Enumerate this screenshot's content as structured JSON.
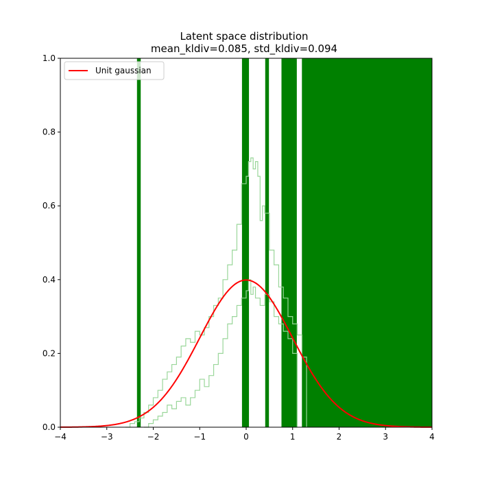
{
  "chart_data": {
    "type": "line",
    "title": "Latent space distribution",
    "subtitle": "mean_kldiv=0.085, std_kldiv=0.094",
    "xlabel": "",
    "ylabel": "",
    "xlim": [
      -4,
      4
    ],
    "ylim": [
      0,
      1.0
    ],
    "xticks": [
      "−4",
      "−3",
      "−2",
      "−1",
      "0",
      "1",
      "2",
      "3",
      "4"
    ],
    "xtick_values": [
      -4,
      -3,
      -2,
      -1,
      0,
      1,
      2,
      3,
      4
    ],
    "yticks": [
      "0.0",
      "0.2",
      "0.4",
      "0.6",
      "0.8",
      "1.0"
    ],
    "ytick_values": [
      0,
      0.2,
      0.4,
      0.6,
      0.8,
      1.0
    ],
    "grid": false,
    "legend": {
      "placement": "upper-left",
      "entries": [
        {
          "label": "Unit gaussian",
          "color": "#ff0000"
        }
      ]
    },
    "series": [
      {
        "name": "Unit gaussian",
        "kind": "normal-pdf",
        "mean": 0,
        "std": 1,
        "color": "#ff0000"
      }
    ],
    "histograms": [
      {
        "color": "#008000",
        "style": "filled-bars",
        "bars": [
          {
            "x_start": -2.35,
            "x_end": -2.27,
            "height": 1.0
          },
          {
            "x_start": -0.09,
            "x_end": 0.06,
            "height": 1.0
          },
          {
            "x_start": 0.41,
            "x_end": 0.49,
            "height": 1.0
          },
          {
            "x_start": 0.76,
            "x_end": 1.09,
            "height": 1.0
          },
          {
            "x_start": 1.2,
            "x_end": 4.0,
            "height": 1.0
          }
        ]
      },
      {
        "color": "#99d699",
        "style": "step-outline",
        "points": [
          [
            -2.6,
            0.0
          ],
          [
            -2.5,
            0.01
          ],
          [
            -2.4,
            0.015
          ],
          [
            -2.3,
            0.025
          ],
          [
            -2.2,
            0.04
          ],
          [
            -2.1,
            0.06
          ],
          [
            -2.0,
            0.08
          ],
          [
            -1.9,
            0.1
          ],
          [
            -1.8,
            0.13
          ],
          [
            -1.7,
            0.15
          ],
          [
            -1.6,
            0.17
          ],
          [
            -1.5,
            0.19
          ],
          [
            -1.4,
            0.22
          ],
          [
            -1.3,
            0.24
          ],
          [
            -1.2,
            0.23
          ],
          [
            -1.1,
            0.26
          ],
          [
            -1.0,
            0.25
          ],
          [
            -0.9,
            0.27
          ],
          [
            -0.8,
            0.3
          ],
          [
            -0.7,
            0.33
          ],
          [
            -0.6,
            0.35
          ],
          [
            -0.5,
            0.4
          ],
          [
            -0.4,
            0.44
          ],
          [
            -0.3,
            0.48
          ],
          [
            -0.2,
            0.55
          ],
          [
            -0.1,
            0.66
          ],
          [
            0.0,
            0.68
          ],
          [
            0.05,
            0.72
          ],
          [
            0.1,
            0.73
          ],
          [
            0.15,
            0.7
          ],
          [
            0.2,
            0.72
          ],
          [
            0.25,
            0.68
          ],
          [
            0.3,
            0.56
          ],
          [
            0.35,
            0.6
          ],
          [
            0.4,
            0.58
          ],
          [
            0.5,
            0.48
          ],
          [
            0.6,
            0.44
          ],
          [
            0.7,
            0.38
          ],
          [
            0.8,
            0.35
          ],
          [
            0.9,
            0.3
          ],
          [
            1.0,
            0.28
          ],
          [
            1.1,
            0.25
          ],
          [
            1.2,
            0.19
          ],
          [
            1.3,
            0.0
          ]
        ]
      },
      {
        "color": "#99d699",
        "style": "step-outline",
        "points": [
          [
            -2.2,
            0.0
          ],
          [
            -2.1,
            0.01
          ],
          [
            -2.0,
            0.02
          ],
          [
            -1.9,
            0.03
          ],
          [
            -1.8,
            0.04
          ],
          [
            -1.7,
            0.06
          ],
          [
            -1.6,
            0.05
          ],
          [
            -1.5,
            0.07
          ],
          [
            -1.4,
            0.08
          ],
          [
            -1.3,
            0.06
          ],
          [
            -1.2,
            0.08
          ],
          [
            -1.1,
            0.1
          ],
          [
            -1.0,
            0.13
          ],
          [
            -0.9,
            0.11
          ],
          [
            -0.8,
            0.14
          ],
          [
            -0.7,
            0.17
          ],
          [
            -0.6,
            0.2
          ],
          [
            -0.5,
            0.24
          ],
          [
            -0.4,
            0.28
          ],
          [
            -0.3,
            0.3
          ],
          [
            -0.2,
            0.33
          ],
          [
            -0.1,
            0.35
          ],
          [
            0.0,
            0.37
          ],
          [
            0.05,
            0.4
          ],
          [
            0.1,
            0.36
          ],
          [
            0.15,
            0.38
          ],
          [
            0.2,
            0.35
          ],
          [
            0.3,
            0.33
          ],
          [
            0.4,
            0.36
          ],
          [
            0.5,
            0.34
          ],
          [
            0.6,
            0.3
          ],
          [
            0.7,
            0.28
          ],
          [
            0.8,
            0.26
          ],
          [
            0.9,
            0.24
          ],
          [
            1.0,
            0.2
          ],
          [
            1.1,
            0.0
          ]
        ]
      }
    ]
  }
}
